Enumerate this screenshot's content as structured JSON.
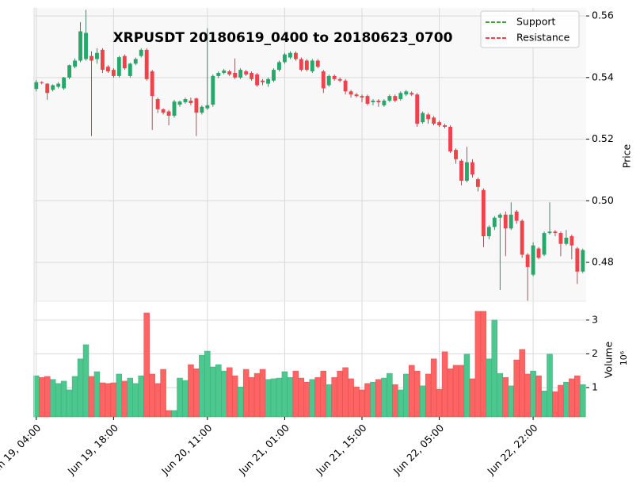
{
  "chart_data": {
    "type": "candlestick",
    "title": "XRPUSDT 20180619_0400 to 20180623_0700",
    "up_color": "#26a86a",
    "down_color": "#f0424a",
    "volume_up_color": "#4cc88f",
    "volume_down_color": "#ff6464",
    "xlim": [
      -0.4,
      99.6
    ],
    "xticks": [
      {
        "value": 0,
        "label": "Jun 19, 04:00"
      },
      {
        "value": 14,
        "label": "Jun 19, 18:00"
      },
      {
        "value": 31,
        "label": "Jun 20, 11:00"
      },
      {
        "value": 45,
        "label": "Jun 21, 01:00"
      },
      {
        "value": 59,
        "label": "Jun 21, 15:00"
      },
      {
        "value": 73,
        "label": "Jun 22, 05:00"
      },
      {
        "value": 90,
        "label": "Jun 22, 22:00"
      }
    ],
    "ylabel": "Price",
    "ylim": [
      0.4674,
      0.5626
    ],
    "yticks": [
      0.48,
      {
        "value": 0.5,
        "label": "0.50"
      },
      0.52,
      0.54,
      0.56
    ],
    "grid": true,
    "legend_position": "upper right",
    "legend": [
      {
        "name": "Support",
        "color": "#008000"
      },
      {
        "name": "Resistance",
        "color": "#ff0000"
      }
    ],
    "candles": [
      [
        0.5363,
        0.5392,
        0.5355,
        0.5385
      ],
      [
        0.5385,
        0.5388,
        0.5378,
        0.5383
      ],
      [
        0.538,
        0.5382,
        0.5328,
        0.535
      ],
      [
        0.536,
        0.5378,
        0.5355,
        0.5375
      ],
      [
        0.537,
        0.5385,
        0.5365,
        0.538
      ],
      [
        0.5365,
        0.5402,
        0.536,
        0.54
      ],
      [
        0.54,
        0.5442,
        0.5395,
        0.544
      ],
      [
        0.5435,
        0.5462,
        0.543,
        0.5455
      ],
      [
        0.5455,
        0.558,
        0.545,
        0.555
      ],
      [
        0.546,
        0.562,
        0.5455,
        0.5545
      ],
      [
        0.547,
        0.5485,
        0.521,
        0.5455
      ],
      [
        0.546,
        0.5495,
        0.5445,
        0.548
      ],
      [
        0.549,
        0.5495,
        0.5415,
        0.5425
      ],
      [
        0.5435,
        0.544,
        0.5415,
        0.542
      ],
      [
        0.5425,
        0.543,
        0.54,
        0.5405
      ],
      [
        0.5405,
        0.547,
        0.54,
        0.5466
      ],
      [
        0.547,
        0.5475,
        0.5425,
        0.543
      ],
      [
        0.5405,
        0.5448,
        0.54,
        0.5445
      ],
      [
        0.5445,
        0.5465,
        0.544,
        0.546
      ],
      [
        0.547,
        0.5495,
        0.5465,
        0.549
      ],
      [
        0.549,
        0.5495,
        0.539,
        0.5395
      ],
      [
        0.542,
        0.5425,
        0.523,
        0.534
      ],
      [
        0.533,
        0.5335,
        0.5285,
        0.5297
      ],
      [
        0.5297,
        0.53,
        0.528,
        0.5286
      ],
      [
        0.529,
        0.5295,
        0.5245,
        0.5276
      ],
      [
        0.5276,
        0.5328,
        0.527,
        0.5322
      ],
      [
        0.5312,
        0.5325,
        0.5305,
        0.5322
      ],
      [
        0.532,
        0.5335,
        0.5315,
        0.533
      ],
      [
        0.5325,
        0.5335,
        0.531,
        0.5317
      ],
      [
        0.5332,
        0.5335,
        0.521,
        0.5286
      ],
      [
        0.5286,
        0.531,
        0.528,
        0.5305
      ],
      [
        0.53,
        0.556,
        0.5295,
        0.531
      ],
      [
        0.5312,
        0.541,
        0.5305,
        0.5405
      ],
      [
        0.5405,
        0.542,
        0.5398,
        0.5415
      ],
      [
        0.5415,
        0.5428,
        0.541,
        0.5423
      ],
      [
        0.542,
        0.5425,
        0.5405,
        0.541
      ],
      [
        0.5415,
        0.5462,
        0.5395,
        0.54
      ],
      [
        0.54,
        0.543,
        0.5395,
        0.5425
      ],
      [
        0.542,
        0.5425,
        0.5405,
        0.541
      ],
      [
        0.5415,
        0.542,
        0.539,
        0.5395
      ],
      [
        0.541,
        0.5415,
        0.537,
        0.5375
      ],
      [
        0.539,
        0.5395,
        0.5375,
        0.5385
      ],
      [
        0.538,
        0.54,
        0.537,
        0.5395
      ],
      [
        0.539,
        0.543,
        0.5385,
        0.5425
      ],
      [
        0.5425,
        0.5455,
        0.542,
        0.545
      ],
      [
        0.545,
        0.548,
        0.5445,
        0.5475
      ],
      [
        0.5465,
        0.5485,
        0.546,
        0.548
      ],
      [
        0.548,
        0.5485,
        0.5455,
        0.546
      ],
      [
        0.546,
        0.5465,
        0.542,
        0.5425
      ],
      [
        0.5455,
        0.546,
        0.542,
        0.5425
      ],
      [
        0.542,
        0.546,
        0.5415,
        0.5455
      ],
      [
        0.5455,
        0.546,
        0.543,
        0.5435
      ],
      [
        0.542,
        0.5425,
        0.535,
        0.5365
      ],
      [
        0.5375,
        0.541,
        0.537,
        0.5405
      ],
      [
        0.5405,
        0.541,
        0.539,
        0.5395
      ],
      [
        0.5395,
        0.54,
        0.5385,
        0.539
      ],
      [
        0.539,
        0.5395,
        0.5345,
        0.5355
      ],
      [
        0.5355,
        0.536,
        0.5335,
        0.5345
      ],
      [
        0.5345,
        0.535,
        0.5335,
        0.534
      ],
      [
        0.534,
        0.5345,
        0.532,
        0.5335
      ],
      [
        0.534,
        0.5345,
        0.531,
        0.5315
      ],
      [
        0.532,
        0.533,
        0.531,
        0.5325
      ],
      [
        0.5325,
        0.533,
        0.5305,
        0.532
      ],
      [
        0.531,
        0.533,
        0.5305,
        0.5325
      ],
      [
        0.5325,
        0.5345,
        0.532,
        0.534
      ],
      [
        0.534,
        0.5345,
        0.532,
        0.5325
      ],
      [
        0.533,
        0.5355,
        0.5325,
        0.535
      ],
      [
        0.5345,
        0.536,
        0.534,
        0.5355
      ],
      [
        0.535,
        0.5355,
        0.534,
        0.5345
      ],
      [
        0.5345,
        0.535,
        0.524,
        0.525
      ],
      [
        0.5255,
        0.529,
        0.525,
        0.5285
      ],
      [
        0.528,
        0.5285,
        0.525,
        0.5265
      ],
      [
        0.527,
        0.5275,
        0.5245,
        0.525
      ],
      [
        0.5255,
        0.526,
        0.524,
        0.5245
      ],
      [
        0.5245,
        0.525,
        0.5235,
        0.524
      ],
      [
        0.524,
        0.5245,
        0.5155,
        0.516
      ],
      [
        0.5165,
        0.517,
        0.512,
        0.5135
      ],
      [
        0.513,
        0.5135,
        0.505,
        0.5065
      ],
      [
        0.5065,
        0.5175,
        0.506,
        0.5125
      ],
      [
        0.5125,
        0.5135,
        0.5075,
        0.5085
      ],
      [
        0.507,
        0.5075,
        0.503,
        0.5045
      ],
      [
        0.5035,
        0.504,
        0.485,
        0.4885
      ],
      [
        0.4885,
        0.492,
        0.4875,
        0.4915
      ],
      [
        0.4915,
        0.495,
        0.4905,
        0.4945
      ],
      [
        0.4945,
        0.496,
        0.471,
        0.4955
      ],
      [
        0.4955,
        0.4965,
        0.482,
        0.491
      ],
      [
        0.491,
        0.4995,
        0.4905,
        0.4955
      ],
      [
        0.4965,
        0.497,
        0.4925,
        0.4935
      ],
      [
        0.4935,
        0.494,
        0.4815,
        0.4825
      ],
      [
        0.4825,
        0.483,
        0.4675,
        0.4785
      ],
      [
        0.476,
        0.4865,
        0.4755,
        0.4855
      ],
      [
        0.4845,
        0.485,
        0.481,
        0.4815
      ],
      [
        0.4825,
        0.49,
        0.482,
        0.4895
      ],
      [
        0.4895,
        0.4995,
        0.489,
        0.49
      ],
      [
        0.49,
        0.4905,
        0.4885,
        0.4895
      ],
      [
        0.4895,
        0.49,
        0.482,
        0.486
      ],
      [
        0.486,
        0.4905,
        0.4855,
        0.488
      ],
      [
        0.4885,
        0.489,
        0.481,
        0.4855
      ],
      [
        0.4845,
        0.485,
        0.473,
        0.477
      ],
      [
        0.477,
        0.4845,
        0.4765,
        0.484
      ]
    ],
    "volume": {
      "label": "Volume",
      "offset_label": "10⁶",
      "ylim": [
        0.13,
        3.56
      ],
      "yticks": [
        1,
        2,
        3
      ],
      "values": [
        1.35,
        1.3,
        1.33,
        1.24,
        1.12,
        1.19,
        0.93,
        1.33,
        1.85,
        2.27,
        1.33,
        1.47,
        1.14,
        1.12,
        1.14,
        1.4,
        1.19,
        1.28,
        1.12,
        1.35,
        3.21,
        1.4,
        1.12,
        1.54,
        0.32,
        0.32,
        1.28,
        1.21,
        1.68,
        1.56,
        1.96,
        2.08,
        1.61,
        1.68,
        1.49,
        1.59,
        1.35,
        1.02,
        1.54,
        1.3,
        1.42,
        1.54,
        1.24,
        1.26,
        1.28,
        1.47,
        1.3,
        1.49,
        1.28,
        1.16,
        1.24,
        1.3,
        1.49,
        1.09,
        1.3,
        1.49,
        1.59,
        1.26,
        1.02,
        0.93,
        1.12,
        1.16,
        1.24,
        1.28,
        1.42,
        1.09,
        0.93,
        1.4,
        1.66,
        1.49,
        1.05,
        1.4,
        1.85,
        0.95,
        2.06,
        1.56,
        1.66,
        1.66,
        1.99,
        1.26,
        3.26,
        3.26,
        1.85,
        3.0,
        1.42,
        1.3,
        1.05,
        1.82,
        2.13,
        1.4,
        1.49,
        1.35,
        0.9,
        1.99,
        0.88,
        1.07,
        1.16,
        1.26,
        1.35,
        1.09
      ]
    }
  }
}
